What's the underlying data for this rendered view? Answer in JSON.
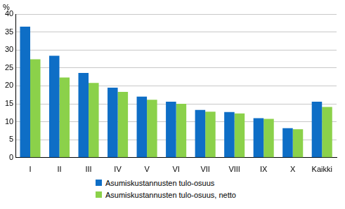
{
  "chart_data": {
    "type": "bar",
    "y_label": "%",
    "categories": [
      "I",
      "II",
      "III",
      "IV",
      "V",
      "VI",
      "VII",
      "VIII",
      "IX",
      "X",
      "Kaikki"
    ],
    "series": [
      {
        "name": "Asumiskustannusten tulo-osuus",
        "color": "#0e6ec6",
        "values": [
          36.5,
          28.4,
          23.6,
          19.5,
          17.0,
          15.6,
          13.3,
          12.7,
          11.0,
          8.2,
          15.6
        ]
      },
      {
        "name": "Asumiskustannusten tulo-osuus, netto",
        "color": "#8bd14a",
        "values": [
          27.4,
          22.3,
          20.8,
          18.3,
          16.1,
          15.0,
          12.8,
          12.3,
          10.8,
          7.9,
          14.1
        ]
      }
    ],
    "ylim": [
      0,
      40
    ],
    "yticks": [
      0,
      5,
      10,
      15,
      20,
      25,
      30,
      35,
      40
    ],
    "grid": true,
    "legend": "bottom"
  }
}
